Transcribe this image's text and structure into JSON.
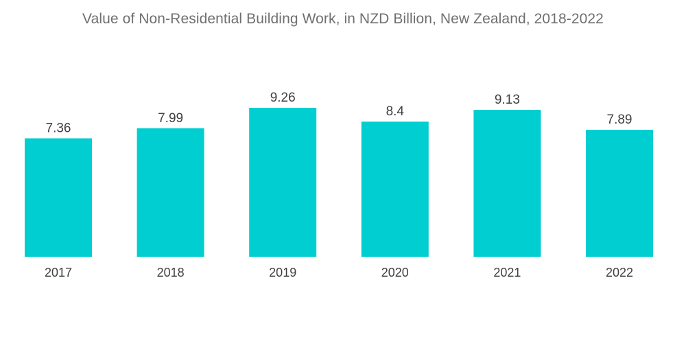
{
  "chart_data": {
    "type": "bar",
    "title": "Value of Non-Residential Building Work, in NZD Billion, New Zealand, 2018-2022",
    "xlabel": "",
    "ylabel": "",
    "categories": [
      "2017",
      "2018",
      "2019",
      "2020",
      "2021",
      "2022"
    ],
    "values": [
      7.36,
      7.99,
      9.26,
      8.4,
      9.13,
      7.89
    ],
    "value_labels": [
      "7.36",
      "7.99",
      "9.26",
      "8.4",
      "9.13",
      "7.89"
    ],
    "ylim": [
      0,
      9.26
    ],
    "bar_color": "#00ced1",
    "grid": false,
    "legend": "none"
  }
}
